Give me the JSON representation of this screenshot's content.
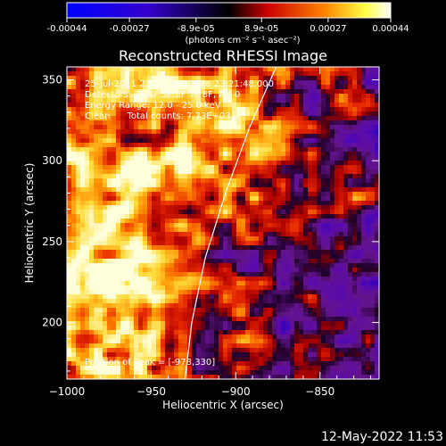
{
  "colorbar": {
    "ticks": [
      "-0.00044",
      "-0.00027",
      "-8.9e-05",
      "8.9e-05",
      "0.00027",
      "0.00044"
    ],
    "range": [
      -0.00044,
      0.00044
    ],
    "unit_label": "(photons cm⁻² s⁻¹ asec⁻²)",
    "colormap": [
      "#0000ff",
      "#000000",
      "#ff0000",
      "#ffff00",
      "#ffffff"
    ]
  },
  "annotations": {
    "line1": "25-Jul-2011 23:17:12.000 to 23:21:48.000",
    "line2": "Detectors: 3F 4F 5F 6F 7F 8F, Att 0",
    "line3": "Energy Range: 12.0 - 25.0 keV",
    "line4": "Clean      Total counts: 7.73E+03",
    "peak": "Position of Peak = [-978,330]"
  },
  "footer_date": "12-May-2022 11:53",
  "chart_data": {
    "type": "heatmap",
    "title": "Reconstructed RHESSI Image",
    "xlabel": "Heliocentric X (arcsec)",
    "ylabel": "Heliocentric Y (arcsec)",
    "xlim": [
      -1000,
      -815
    ],
    "ylim": [
      165,
      358
    ],
    "xticks": [
      -1000,
      -950,
      -900,
      -850
    ],
    "yticks": [
      200,
      250,
      300,
      350
    ],
    "xtick_labels": [
      "−1000",
      "−950",
      "−900",
      "−850"
    ],
    "ytick_labels": [
      "200",
      "250",
      "300",
      "350"
    ],
    "limb_points": [
      [
        -930,
        165
      ],
      [
        -926,
        200
      ],
      [
        -918,
        240
      ],
      [
        -906,
        280
      ],
      [
        -892,
        320
      ],
      [
        -876,
        358
      ]
    ],
    "peak": [
      -978,
      330
    ]
  }
}
